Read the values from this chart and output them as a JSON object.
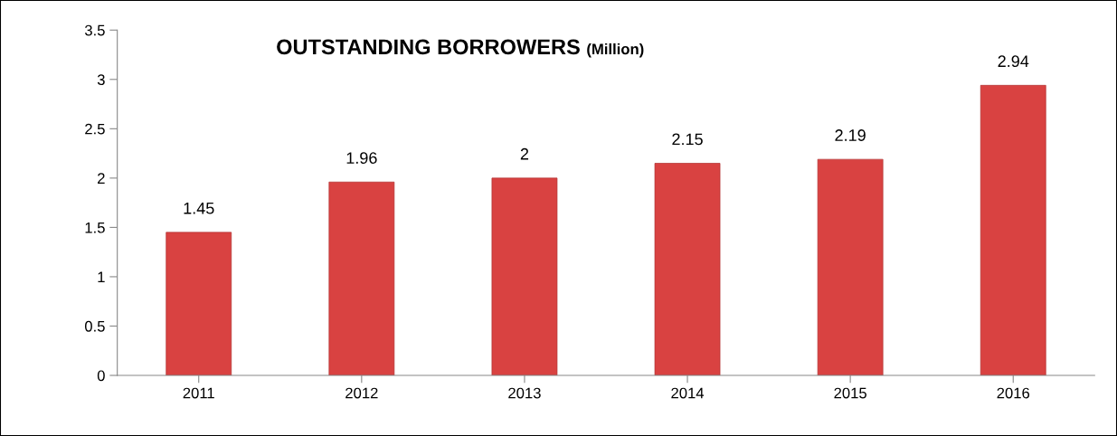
{
  "chart_data": {
    "type": "bar",
    "title": "OUTSTANDING BORROWERS",
    "subtitle": "(Million)",
    "categories": [
      "2011",
      "2012",
      "2013",
      "2014",
      "2015",
      "2016"
    ],
    "values": [
      1.45,
      1.96,
      2,
      2.15,
      2.19,
      2.94
    ],
    "color": "#d94241",
    "ylim": [
      0,
      3.5
    ],
    "yticks": [
      0,
      0.5,
      1,
      1.5,
      2,
      2.5,
      3,
      3.5
    ],
    "data_labels": true,
    "value_labels": [
      "1.45",
      "1.96",
      "2",
      "2.15",
      "2.19",
      "2.94"
    ]
  }
}
